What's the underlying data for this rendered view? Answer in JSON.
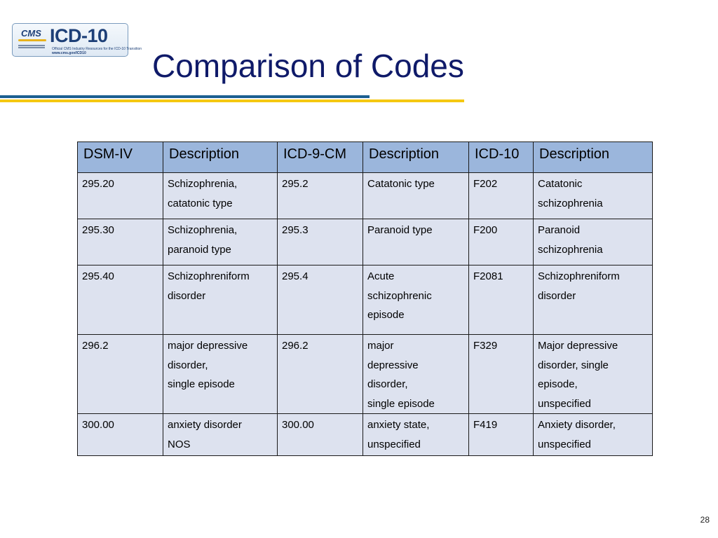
{
  "logo": {
    "brand": "CMS",
    "title": "ICD-10",
    "line1": "Official CMS Industry Resources for the ICD-10 Transition",
    "line2": "www.cms.gov/ICD10"
  },
  "slide": {
    "title": "Comparison of Codes",
    "page_number": "28"
  },
  "table": {
    "headers": [
      "DSM-IV",
      "Description",
      "ICD-9-CM",
      "Description",
      "ICD-10",
      "Description"
    ],
    "rows": [
      {
        "dsm": "295.20",
        "dsm_desc": [
          "Schizophrenia,",
          "catatonic type"
        ],
        "icd9": "295.2",
        "icd9_desc": [
          "Catatonic type"
        ],
        "icd10": "F202",
        "icd10_desc": [
          "Catatonic",
          "schizophrenia"
        ]
      },
      {
        "dsm": "295.30",
        "dsm_desc": [
          "Schizophrenia,",
          "paranoid type"
        ],
        "icd9": "295.3",
        "icd9_desc": [
          "Paranoid type"
        ],
        "icd10": "F200",
        "icd10_desc": [
          "Paranoid",
          "schizophrenia"
        ]
      },
      {
        "dsm": "295.40",
        "dsm_desc": [
          "Schizophreniform",
          "disorder"
        ],
        "icd9": "295.4",
        "icd9_desc": [
          "Acute",
          "schizophrenic",
          "episode"
        ],
        "icd10": "F2081",
        "icd10_desc": [
          "Schizophreniform",
          "disorder"
        ]
      },
      {
        "dsm": "296.2",
        "dsm_desc": [
          "major depressive",
          "disorder,",
          "single episode"
        ],
        "icd9": "296.2",
        "icd9_desc": [
          "major",
          "depressive",
          "disorder,",
          "single episode"
        ],
        "icd10": "F329",
        "icd10_desc": [
          "Major depressive",
          "disorder, single",
          "episode,",
          "unspecified"
        ]
      },
      {
        "dsm": "300.00",
        "dsm_desc": [
          "anxiety disorder",
          "NOS"
        ],
        "icd9": "300.00",
        "icd9_desc": [
          "anxiety state,",
          "unspecified"
        ],
        "icd10": "F419",
        "icd10_desc": [
          "Anxiety disorder,",
          "unspecified"
        ]
      }
    ]
  }
}
